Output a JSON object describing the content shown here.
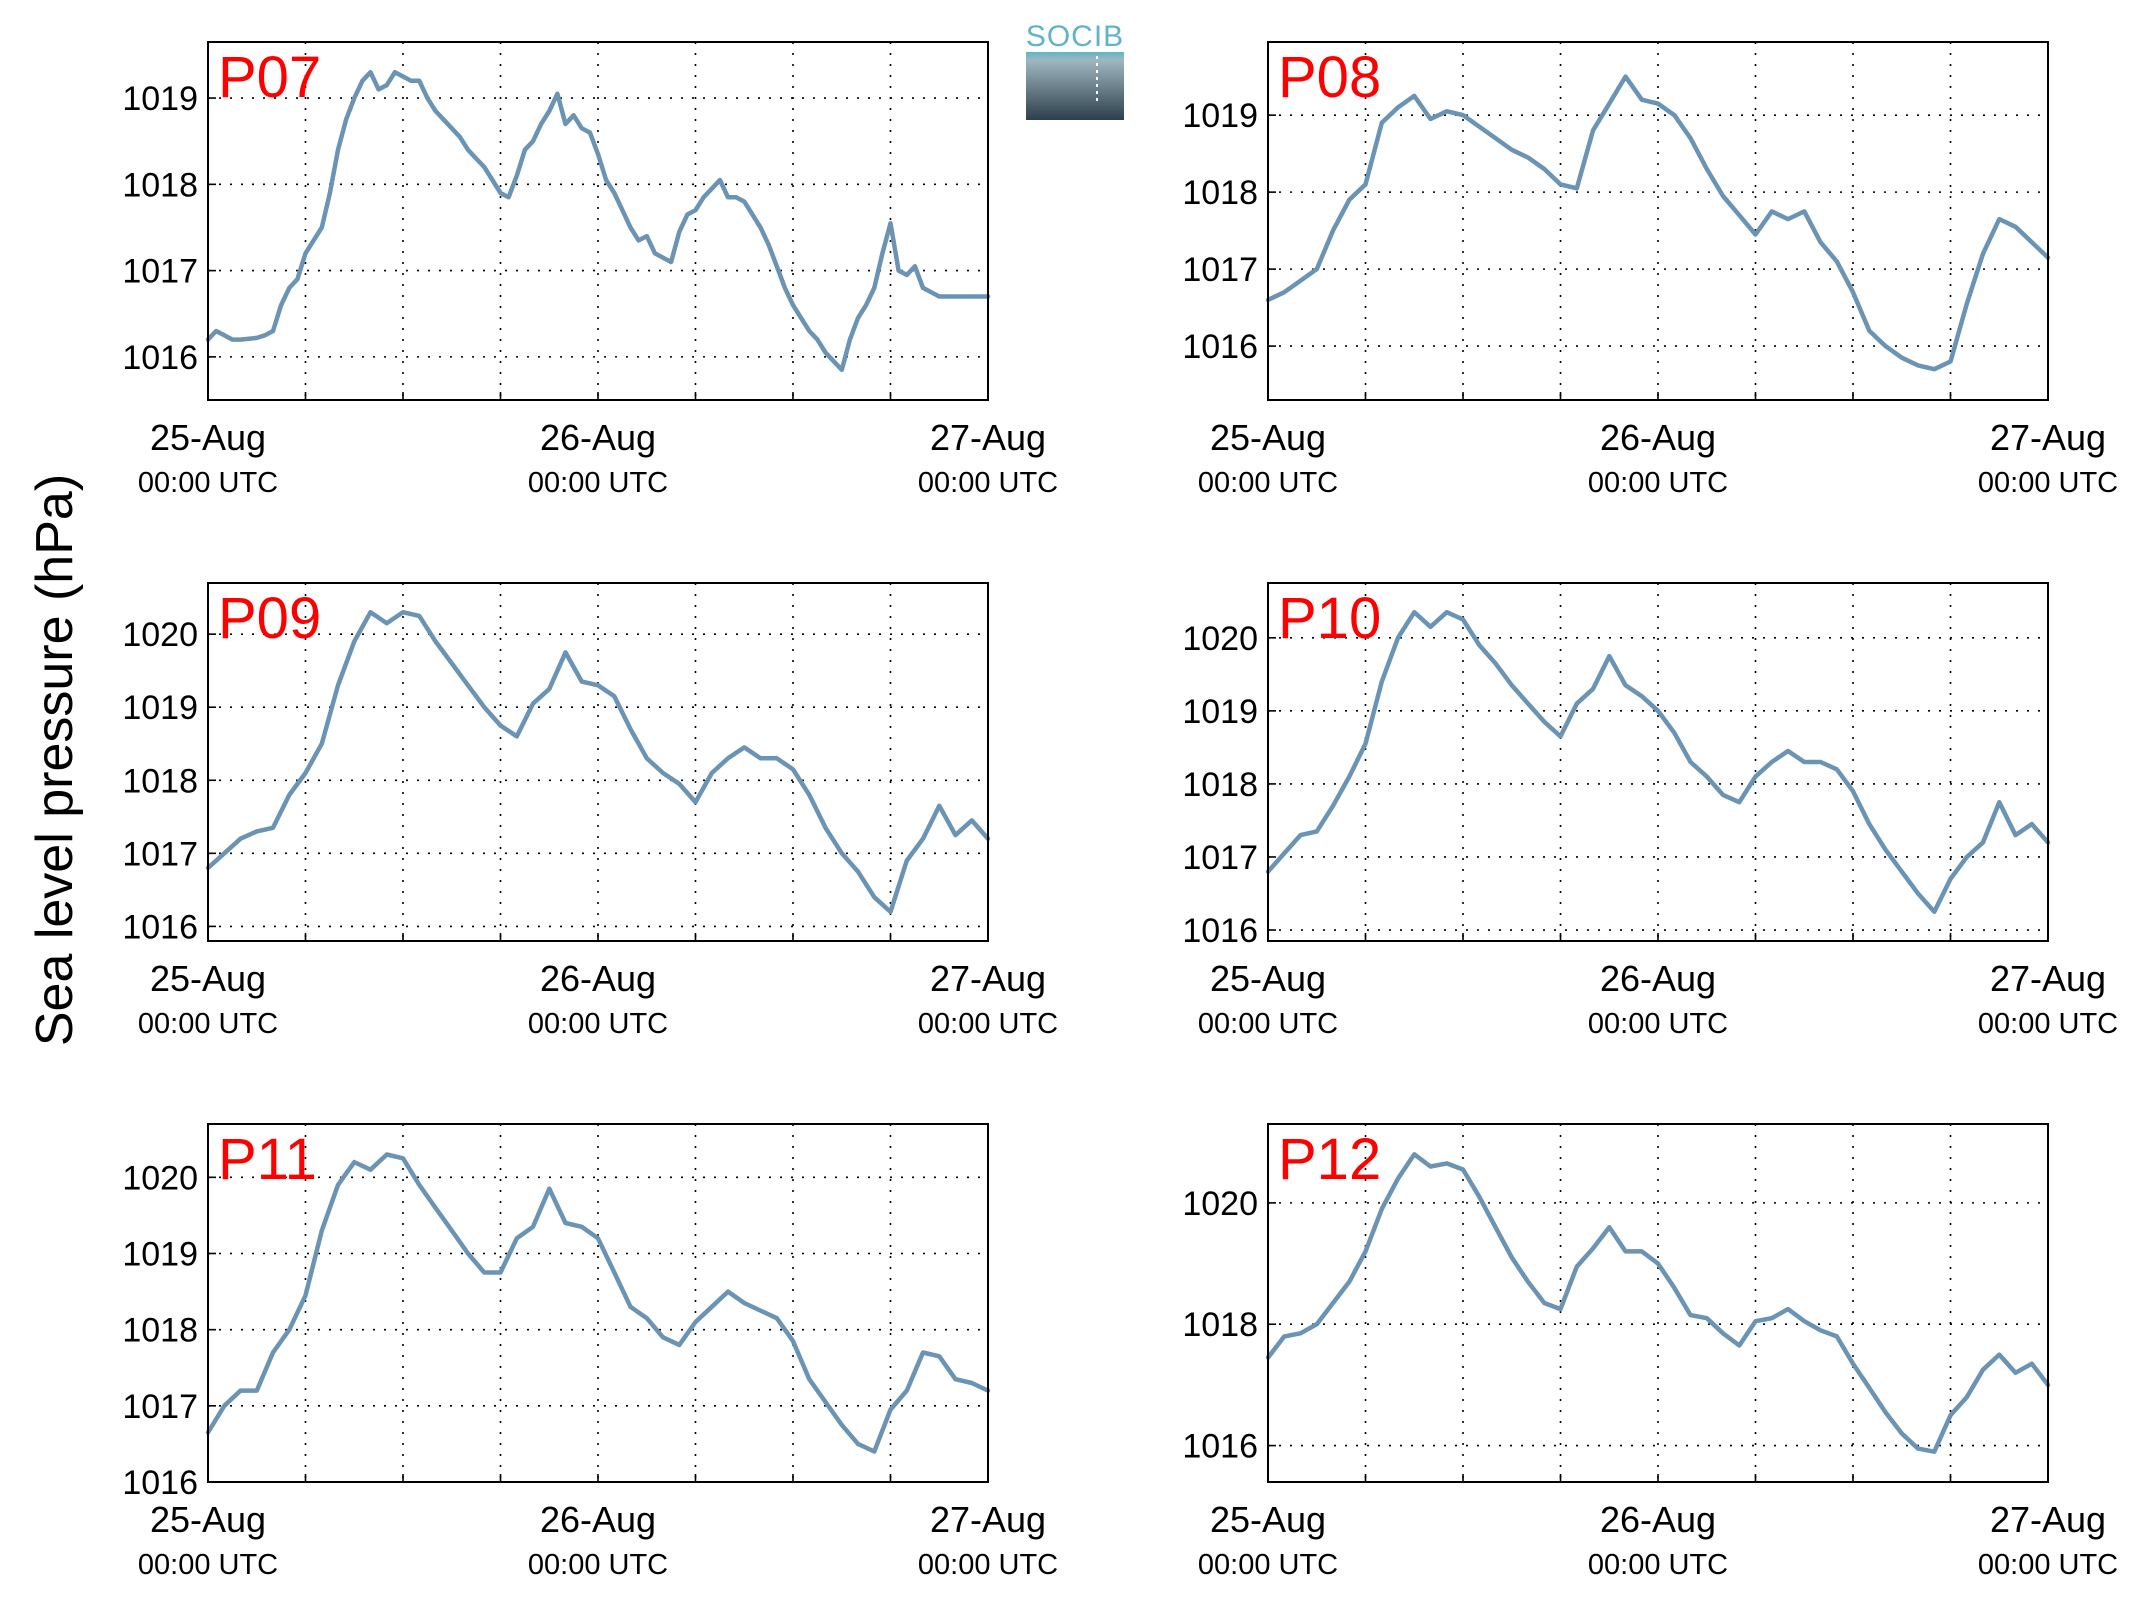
{
  "figure": {
    "ylabel": "Sea level pressure (hPa)",
    "logo_text": "SOCIB",
    "line_color": "#6a93b4",
    "title_color": "#ff0000",
    "logo_color": "#5fb4c8"
  },
  "chart_data": [
    {
      "type": "line",
      "title": "P07",
      "x_ticks": [
        {
          "date": "25-Aug",
          "time": "00:00 UTC"
        },
        {
          "date": "26-Aug",
          "time": "00:00 UTC"
        },
        {
          "date": "27-Aug",
          "time": "00:00 UTC"
        }
      ],
      "xlim_hours": [
        0,
        48
      ],
      "ylim": [
        1015.5,
        1019.65
      ],
      "yticks": [
        1016,
        1017,
        1018,
        1019
      ],
      "grid": true,
      "x_hours": [
        0,
        0.5,
        1,
        1.5,
        2,
        3,
        3.5,
        4,
        4.5,
        5,
        5.5,
        6,
        6.5,
        7,
        7.5,
        8,
        8.5,
        9,
        9.5,
        10,
        10.5,
        11,
        11.5,
        12,
        12.5,
        13,
        13.5,
        14,
        14.5,
        15,
        15.5,
        16,
        16.5,
        17,
        17.5,
        18,
        18.5,
        19,
        19.5,
        20,
        20.5,
        21,
        21.5,
        22,
        22.5,
        23,
        23.5,
        24,
        24.5,
        25,
        25.5,
        26,
        26.5,
        27,
        27.5,
        28,
        28.5,
        29,
        29.5,
        30,
        30.5,
        31,
        31.5,
        32,
        32.5,
        33,
        33.5,
        34,
        34.5,
        35,
        35.5,
        36,
        36.5,
        37,
        37.5,
        38,
        38.5,
        39,
        39.5,
        40,
        40.5,
        41,
        41.5,
        42,
        42.5,
        43,
        43.5,
        44,
        44.5,
        45,
        45.5,
        46,
        46.5,
        47,
        47.5,
        48
      ],
      "values": [
        1016.2,
        1016.3,
        1016.25,
        1016.2,
        1016.2,
        1016.22,
        1016.25,
        1016.3,
        1016.6,
        1016.8,
        1016.9,
        1017.2,
        1017.35,
        1017.5,
        1017.9,
        1018.4,
        1018.75,
        1019.0,
        1019.2,
        1019.3,
        1019.1,
        1019.15,
        1019.3,
        1019.25,
        1019.2,
        1019.2,
        1019.0,
        1018.85,
        1018.75,
        1018.65,
        1018.55,
        1018.4,
        1018.3,
        1018.2,
        1018.05,
        1017.9,
        1017.85,
        1018.1,
        1018.4,
        1018.5,
        1018.7,
        1018.85,
        1019.05,
        1018.7,
        1018.8,
        1018.65,
        1018.6,
        1018.35,
        1018.05,
        1017.9,
        1017.7,
        1017.5,
        1017.35,
        1017.4,
        1017.2,
        1017.15,
        1017.1,
        1017.45,
        1017.65,
        1017.7,
        1017.85,
        1017.95,
        1018.05,
        1017.85,
        1017.85,
        1017.8,
        1017.65,
        1017.5,
        1017.3,
        1017.05,
        1016.8,
        1016.6,
        1016.45,
        1016.3,
        1016.2,
        1016.05,
        1015.95,
        1015.85,
        1016.2,
        1016.45,
        1016.6,
        1016.8,
        1017.2,
        1017.55,
        1017.0,
        1016.95,
        1017.05,
        1016.8,
        1016.75,
        1016.7,
        1016.7,
        1016.7,
        1016.7,
        1016.7,
        1016.7,
        1016.7
      ]
    },
    {
      "type": "line",
      "title": "P08",
      "x_ticks": [
        {
          "date": "25-Aug",
          "time": "00:00 UTC"
        },
        {
          "date": "26-Aug",
          "time": "00:00 UTC"
        },
        {
          "date": "27-Aug",
          "time": "00:00 UTC"
        }
      ],
      "xlim_hours": [
        0,
        48
      ],
      "ylim": [
        1015.3,
        1019.95
      ],
      "yticks": [
        1016,
        1017,
        1018,
        1019
      ],
      "grid": true,
      "x_hours": [
        0,
        1,
        2,
        3,
        4,
        5,
        6,
        7,
        8,
        9,
        10,
        11,
        12,
        13,
        14,
        15,
        16,
        17,
        18,
        19,
        20,
        21,
        22,
        23,
        24,
        25,
        26,
        27,
        28,
        29,
        30,
        31,
        32,
        33,
        34,
        35,
        36,
        37,
        38,
        39,
        40,
        41,
        42,
        43,
        44,
        45,
        46,
        47,
        48
      ],
      "values": [
        1016.6,
        1016.7,
        1016.85,
        1017.0,
        1017.5,
        1017.9,
        1018.1,
        1018.9,
        1019.1,
        1019.25,
        1018.95,
        1019.05,
        1019.0,
        1018.85,
        1018.7,
        1018.55,
        1018.45,
        1018.3,
        1018.1,
        1018.05,
        1018.8,
        1019.15,
        1019.5,
        1019.2,
        1019.15,
        1019.0,
        1018.7,
        1018.3,
        1017.95,
        1017.7,
        1017.45,
        1017.75,
        1017.65,
        1017.75,
        1017.35,
        1017.1,
        1016.7,
        1016.2,
        1016.0,
        1015.85,
        1015.75,
        1015.7,
        1015.8,
        1016.55,
        1017.2,
        1017.65,
        1017.55,
        1017.35,
        1017.15
      ]
    },
    {
      "type": "line",
      "title": "P09",
      "x_ticks": [
        {
          "date": "25-Aug",
          "time": "00:00 UTC"
        },
        {
          "date": "26-Aug",
          "time": "00:00 UTC"
        },
        {
          "date": "27-Aug",
          "time": "00:00 UTC"
        }
      ],
      "xlim_hours": [
        0,
        48
      ],
      "ylim": [
        1015.8,
        1020.7
      ],
      "yticks": [
        1016,
        1017,
        1018,
        1019,
        1020
      ],
      "grid": true,
      "x_hours": [
        0,
        1,
        2,
        3,
        4,
        5,
        6,
        7,
        8,
        9,
        10,
        11,
        12,
        13,
        14,
        15,
        16,
        17,
        18,
        19,
        20,
        21,
        22,
        23,
        24,
        25,
        26,
        27,
        28,
        29,
        30,
        31,
        32,
        33,
        34,
        35,
        36,
        37,
        38,
        39,
        40,
        41,
        42,
        43,
        44,
        45,
        46,
        47,
        48
      ],
      "values": [
        1016.8,
        1017.0,
        1017.2,
        1017.3,
        1017.35,
        1017.8,
        1018.1,
        1018.5,
        1019.3,
        1019.9,
        1020.3,
        1020.15,
        1020.3,
        1020.25,
        1019.9,
        1019.6,
        1019.3,
        1019.0,
        1018.75,
        1018.6,
        1019.05,
        1019.25,
        1019.75,
        1019.35,
        1019.3,
        1019.15,
        1018.7,
        1018.3,
        1018.1,
        1017.95,
        1017.7,
        1018.1,
        1018.3,
        1018.45,
        1018.3,
        1018.3,
        1018.15,
        1017.8,
        1017.35,
        1017.0,
        1016.75,
        1016.4,
        1016.2,
        1016.9,
        1017.2,
        1017.65,
        1017.25,
        1017.45,
        1017.2
      ]
    },
    {
      "type": "line",
      "title": "P10",
      "x_ticks": [
        {
          "date": "25-Aug",
          "time": "00:00 UTC"
        },
        {
          "date": "26-Aug",
          "time": "00:00 UTC"
        },
        {
          "date": "27-Aug",
          "time": "00:00 UTC"
        }
      ],
      "xlim_hours": [
        0,
        48
      ],
      "ylim": [
        1015.85,
        1020.75
      ],
      "yticks": [
        1016,
        1017,
        1018,
        1019,
        1020
      ],
      "grid": true,
      "x_hours": [
        0,
        1,
        2,
        3,
        4,
        5,
        6,
        7,
        8,
        9,
        10,
        11,
        12,
        13,
        14,
        15,
        16,
        17,
        18,
        19,
        20,
        21,
        22,
        23,
        24,
        25,
        26,
        27,
        28,
        29,
        30,
        31,
        32,
        33,
        34,
        35,
        36,
        37,
        38,
        39,
        40,
        41,
        42,
        43,
        44,
        45,
        46,
        47,
        48
      ],
      "values": [
        1016.8,
        1017.05,
        1017.3,
        1017.35,
        1017.7,
        1018.1,
        1018.55,
        1019.4,
        1020.0,
        1020.35,
        1020.15,
        1020.35,
        1020.25,
        1019.9,
        1019.65,
        1019.35,
        1019.1,
        1018.85,
        1018.65,
        1019.1,
        1019.3,
        1019.75,
        1019.35,
        1019.2,
        1019.0,
        1018.7,
        1018.3,
        1018.1,
        1017.85,
        1017.75,
        1018.1,
        1018.3,
        1018.45,
        1018.3,
        1018.3,
        1018.2,
        1017.9,
        1017.45,
        1017.1,
        1016.8,
        1016.5,
        1016.25,
        1016.7,
        1017.0,
        1017.2,
        1017.75,
        1017.3,
        1017.45,
        1017.2
      ]
    },
    {
      "type": "line",
      "title": "P11",
      "x_ticks": [
        {
          "date": "25-Aug",
          "time": "00:00 UTC"
        },
        {
          "date": "26-Aug",
          "time": "00:00 UTC"
        },
        {
          "date": "27-Aug",
          "time": "00:00 UTC"
        }
      ],
      "xlim_hours": [
        0,
        48
      ],
      "ylim": [
        1016.0,
        1020.7
      ],
      "yticks": [
        1016,
        1017,
        1018,
        1019,
        1020
      ],
      "grid": true,
      "x_hours": [
        0,
        1,
        2,
        3,
        4,
        5,
        6,
        7,
        8,
        9,
        10,
        11,
        12,
        13,
        14,
        15,
        16,
        17,
        18,
        19,
        20,
        21,
        22,
        23,
        24,
        25,
        26,
        27,
        28,
        29,
        30,
        31,
        32,
        33,
        34,
        35,
        36,
        37,
        38,
        39,
        40,
        41,
        42,
        43,
        44,
        45,
        46,
        47,
        48
      ],
      "values": [
        1016.65,
        1017.0,
        1017.2,
        1017.2,
        1017.7,
        1018.0,
        1018.45,
        1019.3,
        1019.9,
        1020.2,
        1020.1,
        1020.3,
        1020.25,
        1019.9,
        1019.6,
        1019.3,
        1019.0,
        1018.75,
        1018.75,
        1019.2,
        1019.35,
        1019.85,
        1019.4,
        1019.35,
        1019.2,
        1018.75,
        1018.3,
        1018.15,
        1017.9,
        1017.8,
        1018.1,
        1018.3,
        1018.5,
        1018.35,
        1018.25,
        1018.15,
        1017.85,
        1017.35,
        1017.05,
        1016.75,
        1016.5,
        1016.4,
        1016.95,
        1017.2,
        1017.7,
        1017.65,
        1017.35,
        1017.3,
        1017.2
      ]
    },
    {
      "type": "line",
      "title": "P12",
      "x_ticks": [
        {
          "date": "25-Aug",
          "time": "00:00 UTC"
        },
        {
          "date": "26-Aug",
          "time": "00:00 UTC"
        },
        {
          "date": "27-Aug",
          "time": "00:00 UTC"
        }
      ],
      "xlim_hours": [
        0,
        48
      ],
      "ylim": [
        1015.4,
        1021.3
      ],
      "yticks": [
        1016,
        1018,
        1020
      ],
      "grid": true,
      "x_hours": [
        0,
        1,
        2,
        3,
        4,
        5,
        6,
        7,
        8,
        9,
        10,
        11,
        12,
        13,
        14,
        15,
        16,
        17,
        18,
        19,
        20,
        21,
        22,
        23,
        24,
        25,
        26,
        27,
        28,
        29,
        30,
        31,
        32,
        33,
        34,
        35,
        36,
        37,
        38,
        39,
        40,
        41,
        42,
        43,
        44,
        45,
        46,
        47,
        48
      ],
      "values": [
        1017.45,
        1017.8,
        1017.85,
        1018.0,
        1018.35,
        1018.7,
        1019.2,
        1019.9,
        1020.4,
        1020.8,
        1020.6,
        1020.65,
        1020.55,
        1020.1,
        1019.6,
        1019.1,
        1018.7,
        1018.35,
        1018.25,
        1018.95,
        1019.25,
        1019.6,
        1019.2,
        1019.2,
        1019.0,
        1018.6,
        1018.15,
        1018.1,
        1017.85,
        1017.65,
        1018.05,
        1018.1,
        1018.25,
        1018.05,
        1017.9,
        1017.8,
        1017.35,
        1016.95,
        1016.55,
        1016.2,
        1015.95,
        1015.9,
        1016.5,
        1016.8,
        1017.25,
        1017.5,
        1017.2,
        1017.35,
        1017.0
      ]
    }
  ]
}
